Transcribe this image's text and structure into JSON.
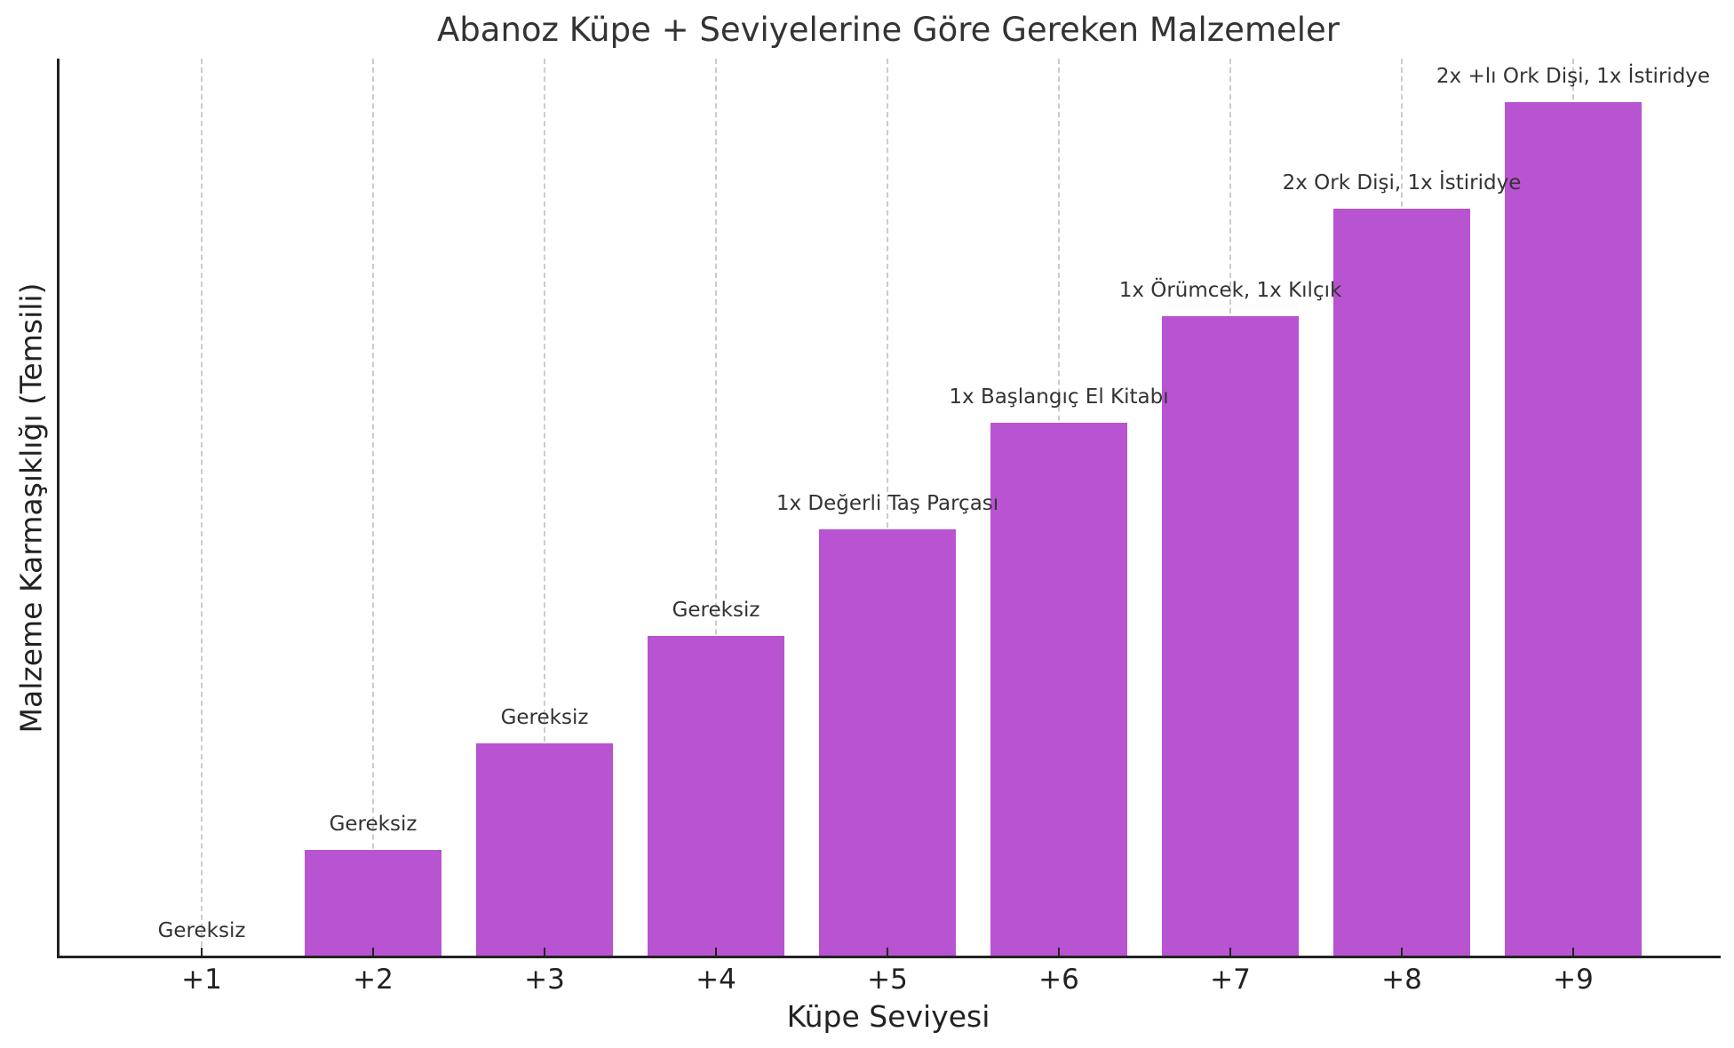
{
  "chart_data": {
    "type": "bar",
    "title": "Abanoz Küpe + Seviyelerine Göre Gereken Malzemeler",
    "xlabel": "Küpe Seviyesi",
    "ylabel": "Malzeme Karmaşıklığı (Temsili)",
    "categories": [
      "+1",
      "+2",
      "+3",
      "+4",
      "+5",
      "+6",
      "+7",
      "+8",
      "+9"
    ],
    "values": [
      0,
      1,
      2,
      3,
      4,
      5,
      6,
      7,
      8
    ],
    "annotations": [
      "Gereksiz",
      "Gereksiz",
      "Gereksiz",
      "Gereksiz",
      "1x Değerli Taş Parçası",
      "1x Başlangıç El Kitabı",
      "1x Örümcek, 1x Kılçık",
      "2x Ork Dişi, 1x İstiridye",
      "2x +lı Ork Dişi, 1x İstiridye"
    ],
    "ylim": [
      0,
      8.4
    ],
    "yticks_visible": false,
    "grid": {
      "x": true,
      "y": false,
      "style": "dashed"
    },
    "legend": null,
    "bar_color": "#b853d1"
  }
}
